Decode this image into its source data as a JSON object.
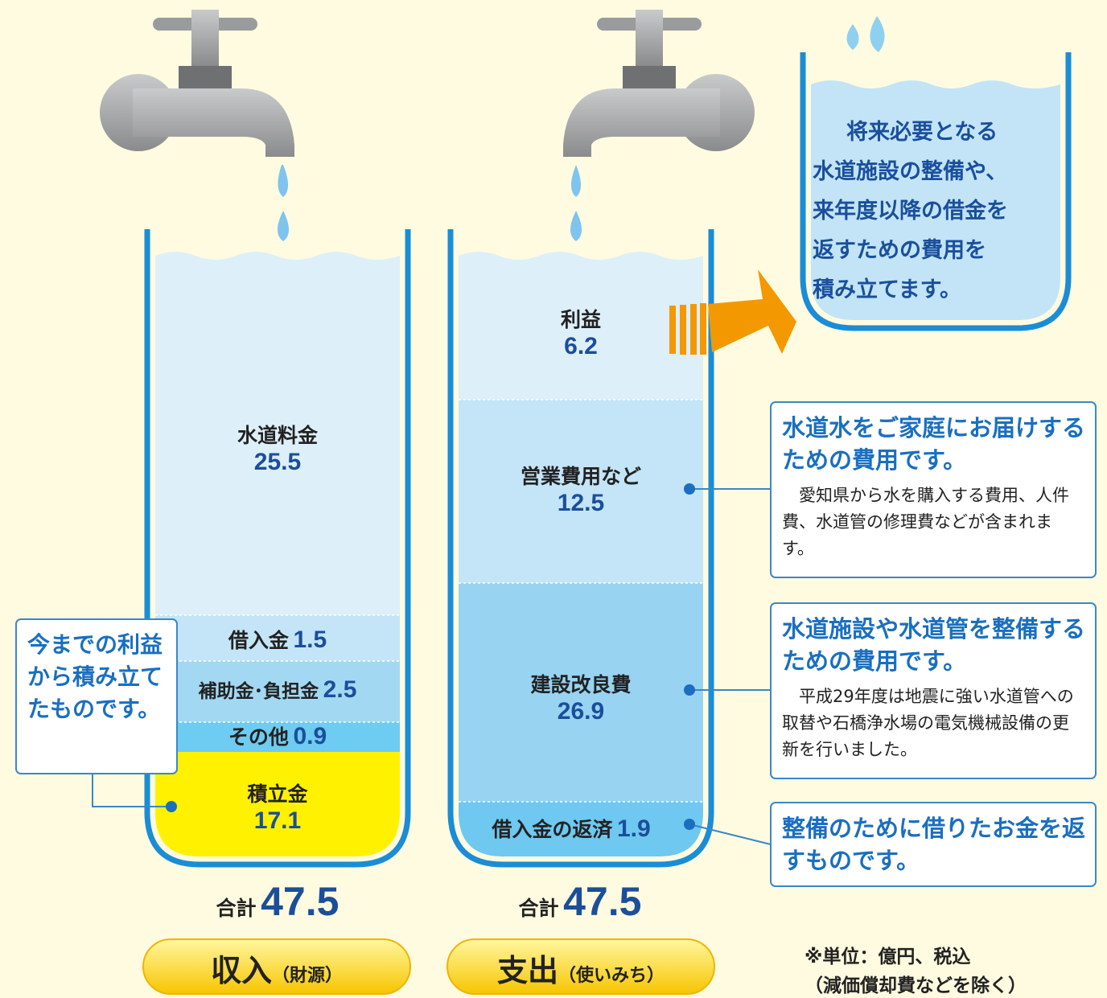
{
  "income": {
    "segments": [
      {
        "label": "水道料金",
        "value": 25.5
      },
      {
        "label": "借入金",
        "value": 1.5
      },
      {
        "label": "補助金･負担金",
        "value": 2.5
      },
      {
        "label": "その他",
        "value": 0.9
      },
      {
        "label": "積立金",
        "value": 17.1
      }
    ],
    "total_label": "合計",
    "total": 47.5,
    "button": {
      "main": "収入",
      "sub": "（財源）"
    }
  },
  "expense": {
    "segments": [
      {
        "label": "利益",
        "value": 6.2
      },
      {
        "label": "営業費用など",
        "value": 12.5
      },
      {
        "label": "建設改良費",
        "value": 26.9
      },
      {
        "label": "借入金の返済",
        "value": 1.9
      }
    ],
    "total_label": "合計",
    "total": 47.5,
    "button": {
      "main": "支出",
      "sub": "（使いみち）"
    }
  },
  "reserve_note": [
    "将来必要となる",
    "水道施設の整備や、",
    "来年度以降の借金を",
    "返すための費用を",
    "積み立てます。"
  ],
  "income_note": "今までの利益から積み立てたものです。",
  "callouts": [
    {
      "title": "水道水をご家庭にお届けするための費用です。",
      "body": "愛知県から水を購入する費用、人件費、水道管の修理費などが含まれます。"
    },
    {
      "title": "水道施設や水道管を整備するための費用です。",
      "body": "平成29年度は地震に強い水道管への取替や石橋浄水場の電気機械設備の更新を行いました。"
    },
    {
      "title": "整備のために借りたお金を返すものです。"
    }
  ],
  "footnote": [
    "※単位：億円、税込",
    "（減価償却費などを除く）"
  ]
}
